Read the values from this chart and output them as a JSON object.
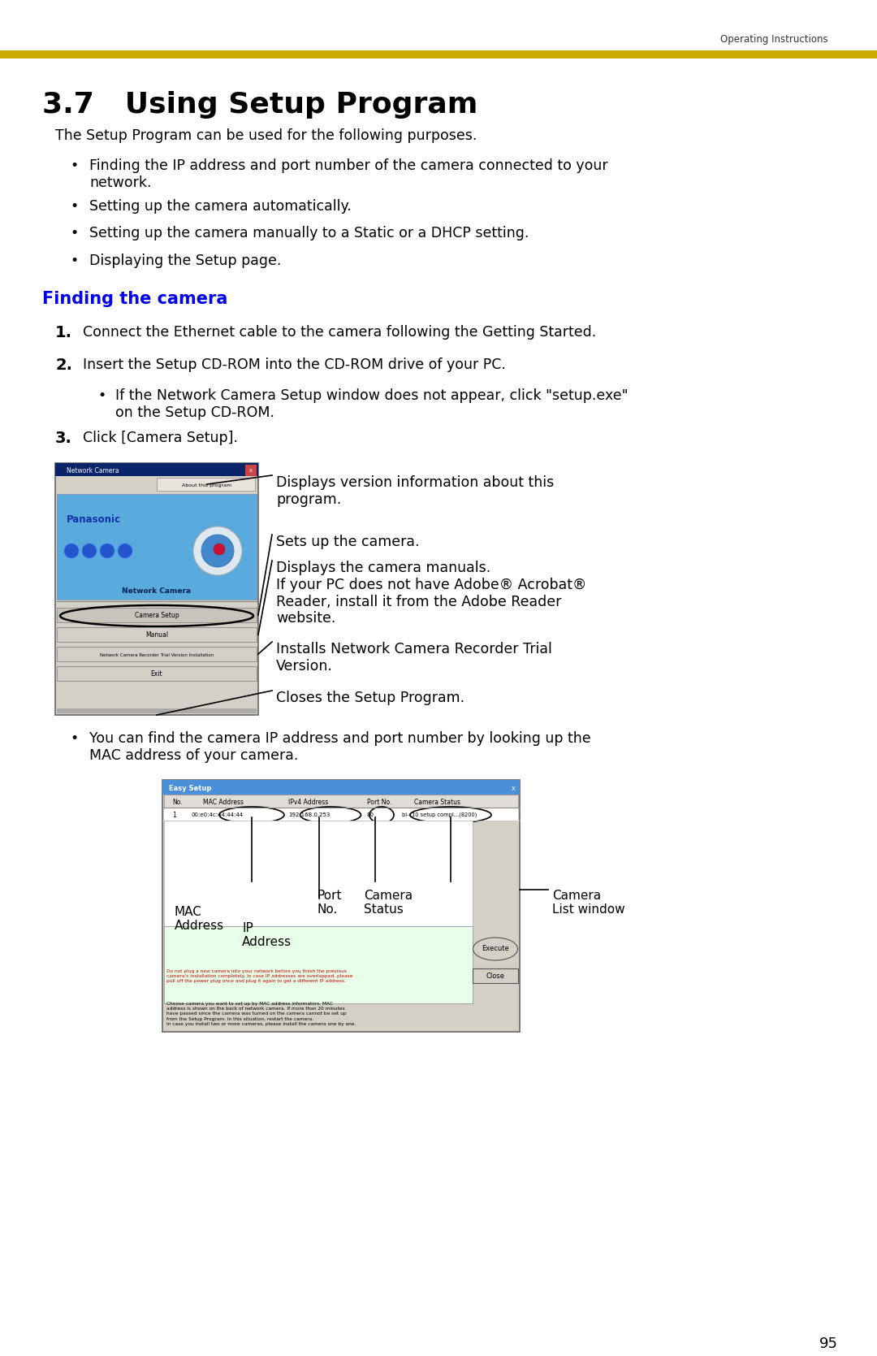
{
  "page_bg": "#ffffff",
  "header_bar_color": "#c8aa00",
  "header_text": "Operating Instructions",
  "header_text_color": "#333333",
  "title": "3.7   Using Setup Program",
  "title_color": "#000000",
  "title_fontsize": 26,
  "section_heading": "Finding the camera",
  "section_heading_color": "#0000ee",
  "section_heading_fontsize": 15,
  "body_fontsize": 12.5,
  "bullet_fontsize": 12.5,
  "numbered_fontsize": 12.5,
  "footer_page": "95",
  "intro_text": "The Setup Program can be used for the following purposes.",
  "bullets": [
    "Finding the IP address and port number of the camera connected to your\nnetwork.",
    "Setting up the camera automatically.",
    "Setting up the camera manually to a Static or a DHCP setting.",
    "Displaying the Setup page."
  ],
  "step1": "Connect the Ethernet cable to the camera following the Getting Started.",
  "step2": "Insert the Setup CD-ROM into the CD-ROM drive of your PC.",
  "sub_bullet": "If the Network Camera Setup window does not appear, click \"setup.exe\"\non the Setup CD-ROM.",
  "step3": "Click [Camera Setup].",
  "ann1": "Displays version information about this\nprogram.",
  "ann2": "Sets up the camera.",
  "ann3": "Displays the camera manuals.\nIf your PC does not have Adobe® Acrobat®\nReader, install it from the Adobe Reader\nwebsite.",
  "ann4": "Installs Network Camera Recorder Trial\nVersion.",
  "ann5": "Closes the Setup Program.",
  "mac_bullet": "You can find the camera IP address and port number by looking up the\nMAC address of your camera.",
  "mac_label1": "MAC\nAddress",
  "mac_label2": "IP\nAddress",
  "mac_label3": "Port\nNo.",
  "mac_label4": "Camera\nStatus",
  "mac_label5": "Camera\nList window"
}
